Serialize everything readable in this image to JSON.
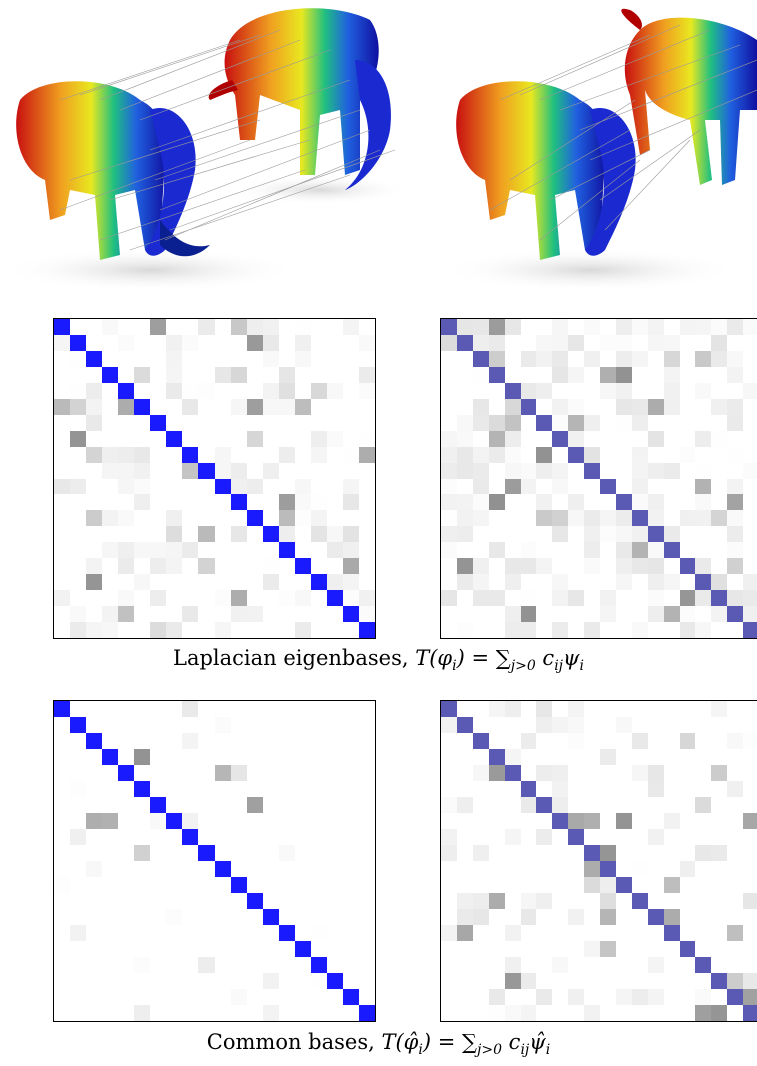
{
  "figure": {
    "captions": {
      "laplacian_text": "Laplacian eigenbases,",
      "laplacian_formula": "T(φ",
      "laplacian_formula_rest": ") = ∑",
      "laplacian_sub": "j>0",
      "laplacian_tail": "c",
      "laplacian_tail_sub": "ij",
      "laplacian_psi": "ψ",
      "laplacian_psi_sub": "i",
      "common_text": "Common bases,",
      "common_formula": "T(φ̂",
      "common_formula_rest": ") = ∑",
      "common_sub": "j>0",
      "common_tail": "c",
      "common_tail_sub": "ij",
      "common_psi": "ψ̂",
      "common_psi_sub": "i",
      "sub_i": "i"
    },
    "colors": {
      "strong_blue": "#1a1aff",
      "muted_blue": "#5a5ab4",
      "gray": "#8a8a8a",
      "correspondence_line": "#9a9a9a"
    },
    "matrices": [
      {
        "id": "laplacian-left",
        "diag": "strong_blue",
        "density": 0.35
      },
      {
        "id": "laplacian-right",
        "diag": "muted_blue",
        "density": 0.55
      },
      {
        "id": "common-left",
        "diag": "strong_blue",
        "density": 0.08
      },
      {
        "id": "common-right",
        "diag": "muted_blue",
        "density": 0.25
      }
    ]
  }
}
